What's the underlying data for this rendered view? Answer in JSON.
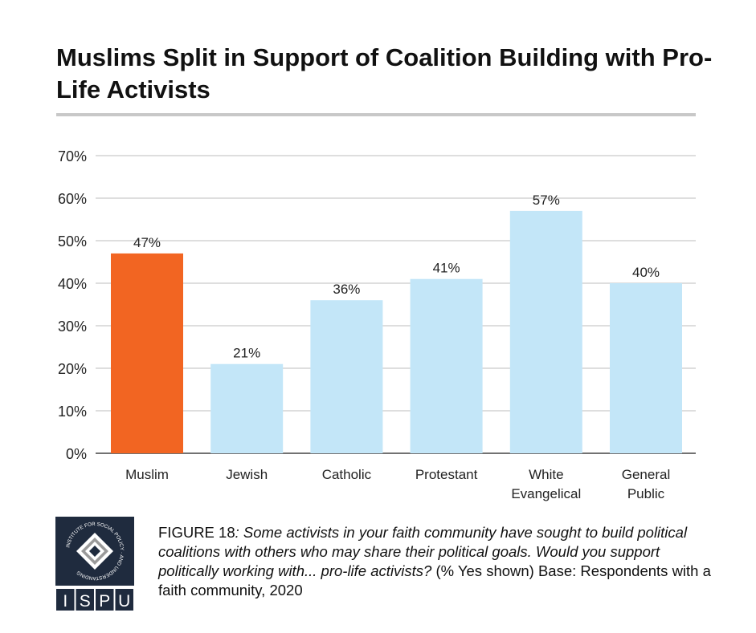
{
  "title": "Muslims Split in Support of Coalition Building with Pro-Life Activists",
  "colors": {
    "highlight": "#f26522",
    "default": "#c3e6f8",
    "grid": "#d3d3d3",
    "logo": "#1f2b3e"
  },
  "chart_data": {
    "type": "bar",
    "title": "Muslims Split in Support of Coalition Building with Pro-Life Activists",
    "categories": [
      "Muslim",
      "Jewish",
      "Catholic",
      "Protestant",
      "White Evangelical",
      "General Public"
    ],
    "category_lines": [
      [
        "Muslim"
      ],
      [
        "Jewish"
      ],
      [
        "Catholic"
      ],
      [
        "Protestant"
      ],
      [
        "White",
        "Evangelical"
      ],
      [
        "General",
        "Public"
      ]
    ],
    "values": [
      47,
      21,
      36,
      41,
      57,
      40
    ],
    "data_labels": [
      "47%",
      "21%",
      "36%",
      "41%",
      "57%",
      "40%"
    ],
    "highlight_index": 0,
    "ylim": [
      0,
      70
    ],
    "yticks": [
      0,
      10,
      20,
      30,
      40,
      50,
      60,
      70
    ],
    "ytick_labels": [
      "0%",
      "10%",
      "20%",
      "30%",
      "40%",
      "50%",
      "60%",
      "70%"
    ],
    "xlabel": "",
    "ylabel": "",
    "grid": true,
    "legend": "none"
  },
  "caption": {
    "label": "FIGURE 18",
    "text": ": Some activists in your faith community have sought to build political coalitions with others who may share their political goals. Would you support politically working with... pro-life activists? ",
    "tail": "(% Yes shown) Base: Respondents with a faith community, 2020"
  },
  "logo": {
    "ring_text": "INSTITUTE FOR SOCIAL POLICY AND UNDERSTANDING",
    "letters": [
      "I",
      "S",
      "P",
      "U"
    ]
  }
}
